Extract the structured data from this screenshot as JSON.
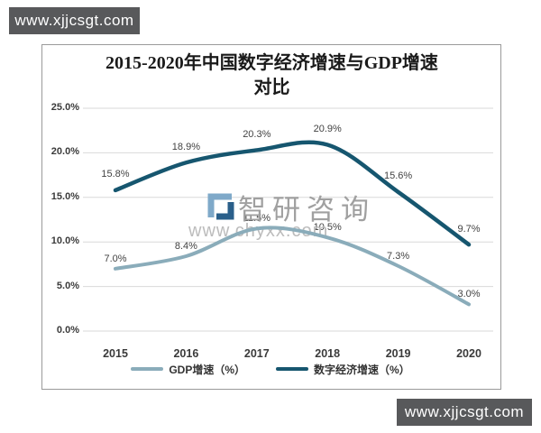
{
  "page": {
    "background_color": "#ffffff",
    "watermark_bar_color": "#58595b",
    "watermark_top_left": "www.xjjcsgt.com",
    "watermark_bottom_right": "www.xjjcsgt.com",
    "center_watermark": {
      "brand_text": "智研咨询",
      "url_text": "www.chyxx.com",
      "logo_colors": [
        "#2a5f8a",
        "#7fa9c9"
      ]
    }
  },
  "chart_data": {
    "type": "line",
    "smooth": true,
    "grid": true,
    "legend_position": "bottom",
    "title": "2015-2020年中国数字经济增速与GDP增速对比",
    "title_line1": "2015-2020年中国数字经济增速与GDP增速",
    "title_line2": "对比",
    "categories": [
      "2015",
      "2016",
      "2017",
      "2018",
      "2019",
      "2020"
    ],
    "series": [
      {
        "name": "GDP增速（%）",
        "color": "#8aacba",
        "values": [
          7.0,
          8.4,
          11.5,
          10.5,
          7.3,
          3.0
        ]
      },
      {
        "name": "数字经济增速（%）",
        "color": "#16566f",
        "values": [
          15.8,
          18.9,
          20.3,
          20.9,
          15.6,
          9.7
        ]
      }
    ],
    "ylabel": "",
    "xlabel": "",
    "ylim": [
      0,
      25
    ],
    "y_ticks": [
      "25.0%",
      "20.0%",
      "15.0%",
      "10.0%",
      "5.0%",
      "0.0%"
    ],
    "gridline_color": "#d9d9d9"
  }
}
